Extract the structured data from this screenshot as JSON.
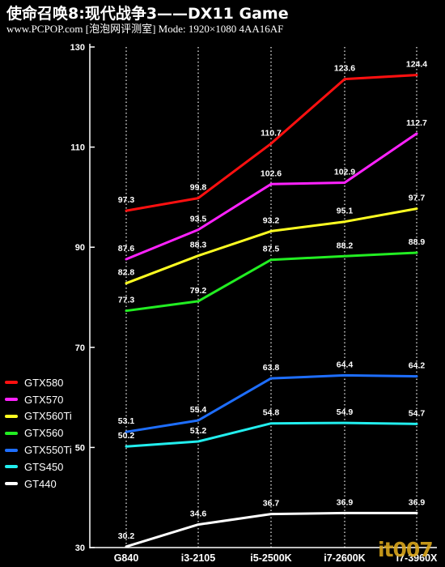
{
  "header": {
    "title": "使命召唤8:现代战争3——DX11 Game",
    "subtitle": "www.PCPOP.com [泡泡网评测室] Mode: 1920×1080 4AA16AF"
  },
  "watermark": "it007",
  "chart_data": {
    "type": "line",
    "categories": [
      "G840",
      "i3-2105",
      "i5-2500K",
      "i7-2600K",
      "i7-3960X"
    ],
    "x_tick_labels": [
      "G840",
      "i3-2105",
      "i5-2500K",
      "i7-2600K",
      "i7-3960X"
    ],
    "y_ticks": [
      30,
      50,
      70,
      90,
      110,
      130
    ],
    "ylim": [
      30,
      130
    ],
    "grid": "vertical dotted",
    "legend_position": "left",
    "series": [
      {
        "name": "GTX580",
        "color": "#ff1010",
        "values": [
          97.3,
          99.8,
          110.7,
          123.6,
          124.4
        ],
        "labels": [
          "97.3",
          "99.8",
          "110.7",
          "123.6",
          "124.4"
        ]
      },
      {
        "name": "GTX570",
        "color": "#ff22ff",
        "values": [
          87.6,
          93.5,
          102.6,
          102.9,
          112.7
        ],
        "labels": [
          "87.6",
          "93.5",
          "102.6",
          "102.9",
          "112.7"
        ]
      },
      {
        "name": "GTX560Ti",
        "color": "#ffff22",
        "values": [
          82.8,
          88.3,
          93.2,
          95.1,
          97.7
        ],
        "labels": [
          "82.8",
          "88.3",
          "93.2",
          "95.1",
          "97.7"
        ]
      },
      {
        "name": "GTX560",
        "color": "#22ee22",
        "values": [
          77.3,
          79.2,
          87.5,
          88.2,
          88.9
        ],
        "labels": [
          "77.3",
          "79.2",
          "87.5",
          "88.2",
          "88.9"
        ]
      },
      {
        "name": "GTX550Ti",
        "color": "#1e6eff",
        "values": [
          53.1,
          55.4,
          63.8,
          64.4,
          64.2
        ],
        "labels": [
          "53.1",
          "55.4",
          "63.8",
          "64.4",
          "64.2"
        ]
      },
      {
        "name": "GTS450",
        "color": "#22eeee",
        "values": [
          50.2,
          51.2,
          54.8,
          54.9,
          54.7
        ],
        "labels": [
          "50.2",
          "51.2",
          "54.8",
          "54.9",
          "54.7"
        ]
      },
      {
        "name": "GT440",
        "color": "#ffffff",
        "values": [
          30.2,
          34.6,
          36.7,
          36.9,
          36.9
        ],
        "labels": [
          "30.2",
          "34.6",
          "36.7",
          "36.9",
          "36.9"
        ]
      }
    ]
  }
}
